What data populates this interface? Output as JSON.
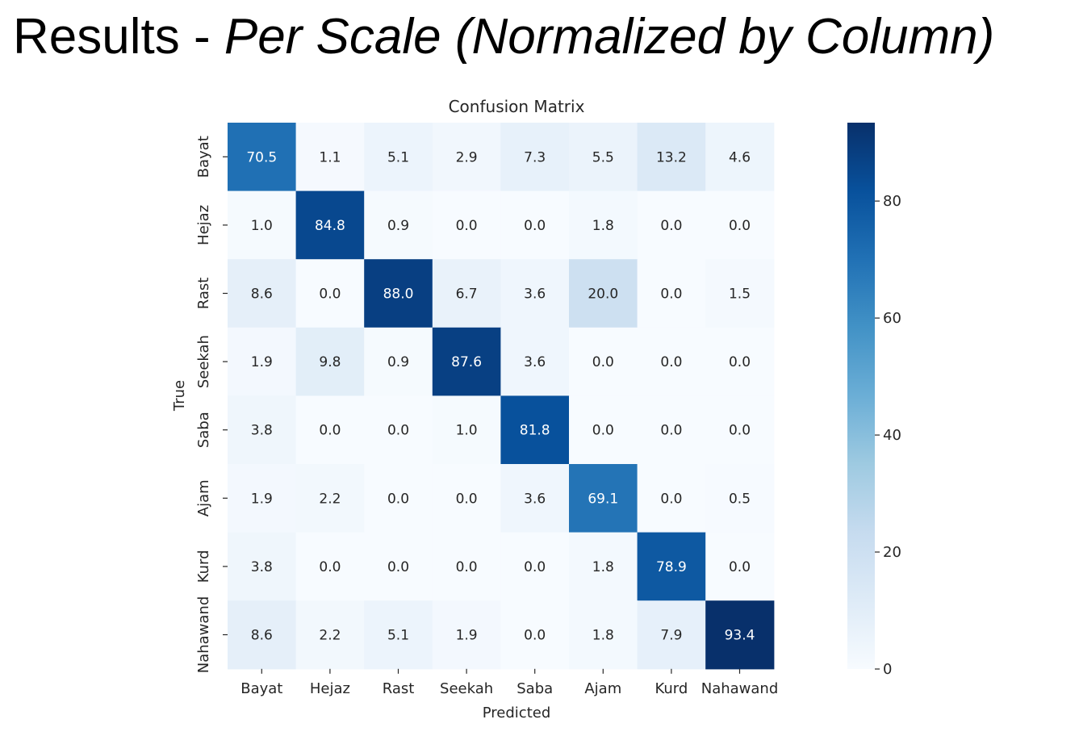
{
  "slide": {
    "title_plain": "Results - ",
    "title_italic": "Per Scale (Normalized by Column)"
  },
  "chart_data": {
    "type": "heatmap",
    "title": "Confusion Matrix",
    "xlabel": "Predicted",
    "ylabel": "True",
    "x_categories": [
      "Bayat",
      "Hejaz",
      "Rast",
      "Seekah",
      "Saba",
      "Ajam",
      "Kurd",
      "Nahawand"
    ],
    "y_categories": [
      "Bayat",
      "Hejaz",
      "Rast",
      "Seekah",
      "Saba",
      "Ajam",
      "Kurd",
      "Nahawand"
    ],
    "values": [
      [
        70.5,
        1.1,
        5.1,
        2.9,
        7.3,
        5.5,
        13.2,
        4.6
      ],
      [
        1.0,
        84.8,
        0.9,
        0.0,
        0.0,
        1.8,
        0.0,
        0.0
      ],
      [
        8.6,
        0.0,
        88.0,
        6.7,
        3.6,
        20.0,
        0.0,
        1.5
      ],
      [
        1.9,
        9.8,
        0.9,
        87.6,
        3.6,
        0.0,
        0.0,
        0.0
      ],
      [
        3.8,
        0.0,
        0.0,
        1.0,
        81.8,
        0.0,
        0.0,
        0.0
      ],
      [
        1.9,
        2.2,
        0.0,
        0.0,
        3.6,
        69.1,
        0.0,
        0.5
      ],
      [
        3.8,
        0.0,
        0.0,
        0.0,
        0.0,
        1.8,
        78.9,
        0.0
      ],
      [
        8.6,
        2.2,
        5.1,
        1.9,
        0.0,
        1.8,
        7.9,
        93.4
      ]
    ],
    "colormap": "Blues",
    "value_range": [
      0,
      93.4
    ],
    "colorbar_ticks": [
      0,
      20,
      40,
      60,
      80
    ],
    "grid": false,
    "colorbar_position": "right"
  }
}
